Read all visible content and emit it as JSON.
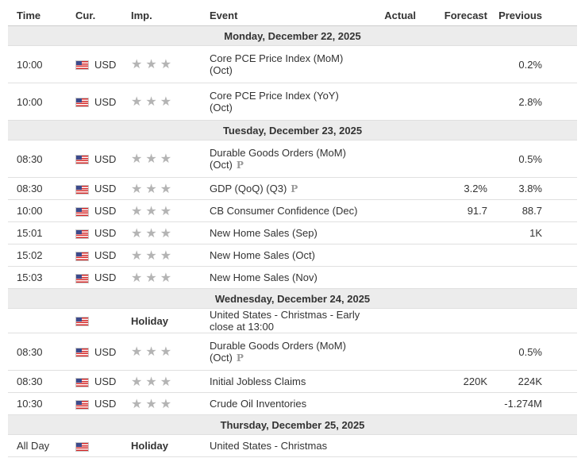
{
  "columns": {
    "time": "Time",
    "currency": "Cur.",
    "importance": "Imp.",
    "event": "Event",
    "actual": "Actual",
    "forecast": "Forecast",
    "previous": "Previous"
  },
  "importance_icon": "star-icon",
  "colors": {
    "star": "#b4b4b4",
    "day_header_bg": "#ececec",
    "prelim_badge": "#9a9a9a"
  },
  "days": [
    {
      "date": "Monday, December 22, 2025",
      "events": [
        {
          "time": "10:00",
          "currency": "USD",
          "stars": "★★★",
          "event": "Core PCE Price Index (MoM)",
          "event_line2": "(Oct)",
          "prelim": "",
          "actual": "",
          "forecast": "",
          "previous": "0.2%"
        },
        {
          "time": "10:00",
          "currency": "USD",
          "stars": "★★★",
          "event": "Core PCE Price Index (YoY)",
          "event_line2": "(Oct)",
          "prelim": "",
          "actual": "",
          "forecast": "",
          "previous": "2.8%"
        }
      ]
    },
    {
      "date": "Tuesday, December 23, 2025",
      "events": [
        {
          "time": "08:30",
          "currency": "USD",
          "stars": "★★★",
          "event": "Durable Goods Orders (MoM)",
          "event_line2": "(Oct)",
          "prelim": "P",
          "actual": "",
          "forecast": "",
          "previous": "0.5%"
        },
        {
          "time": "08:30",
          "currency": "USD",
          "stars": "★★★",
          "event": "GDP (QoQ) (Q3)",
          "event_line2": "",
          "prelim": "P",
          "actual": "",
          "forecast": "3.2%",
          "previous": "3.8%"
        },
        {
          "time": "10:00",
          "currency": "USD",
          "stars": "★★★",
          "event": "CB Consumer Confidence (Dec)",
          "event_line2": "",
          "prelim": "",
          "actual": "",
          "forecast": "91.7",
          "previous": "88.7"
        },
        {
          "time": "15:01",
          "currency": "USD",
          "stars": "★★★",
          "event": "New Home Sales (Sep)",
          "event_line2": "",
          "prelim": "",
          "actual": "",
          "forecast": "",
          "previous": "1K"
        },
        {
          "time": "15:02",
          "currency": "USD",
          "stars": "★★★",
          "event": "New Home Sales (Oct)",
          "event_line2": "",
          "prelim": "",
          "actual": "",
          "forecast": "",
          "previous": ""
        },
        {
          "time": "15:03",
          "currency": "USD",
          "stars": "★★★",
          "event": "New Home Sales (Nov)",
          "event_line2": "",
          "prelim": "",
          "actual": "",
          "forecast": "",
          "previous": ""
        }
      ]
    },
    {
      "date": "Wednesday, December 24, 2025",
      "events": [
        {
          "time": "",
          "currency": "",
          "holiday": "Holiday",
          "event": "United States - Christmas - Early close at 13:00",
          "event_line2": "",
          "prelim": "",
          "actual": "",
          "forecast": "",
          "previous": ""
        },
        {
          "time": "08:30",
          "currency": "USD",
          "stars": "★★★",
          "event": "Durable Goods Orders (MoM)",
          "event_line2": "(Oct)",
          "prelim": "P",
          "actual": "",
          "forecast": "",
          "previous": "0.5%"
        },
        {
          "time": "08:30",
          "currency": "USD",
          "stars": "★★★",
          "event": "Initial Jobless Claims",
          "event_line2": "",
          "prelim": "",
          "actual": "",
          "forecast": "220K",
          "previous": "224K"
        },
        {
          "time": "10:30",
          "currency": "USD",
          "stars": "★★★",
          "event": "Crude Oil Inventories",
          "event_line2": "",
          "prelim": "",
          "actual": "",
          "forecast": "",
          "previous": "-1.274M"
        }
      ]
    },
    {
      "date": "Thursday, December 25, 2025",
      "events": [
        {
          "time": "All Day",
          "currency": "",
          "holiday": "Holiday",
          "event": "United States - Christmas",
          "event_line2": "",
          "prelim": "",
          "actual": "",
          "forecast": "",
          "previous": ""
        }
      ]
    }
  ]
}
